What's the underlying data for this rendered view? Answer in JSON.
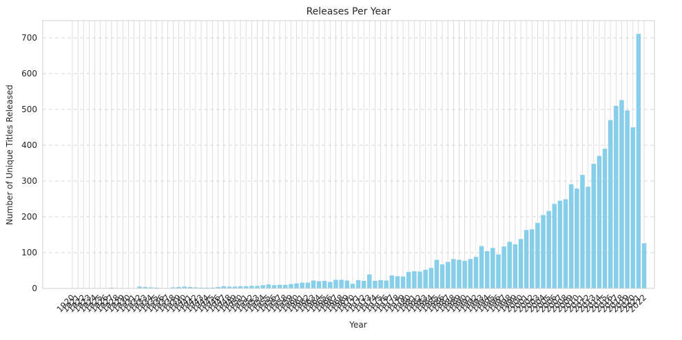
{
  "chart_data": {
    "type": "bar",
    "title": "Releases Per Year",
    "x_label": "Year",
    "y_label": "Number of Unique Titles Released",
    "categories": [
      "1920",
      "1921",
      "1922",
      "1923",
      "1924",
      "1925",
      "1926",
      "1927",
      "1928",
      "1929",
      "1930",
      "1931",
      "1932",
      "1933",
      "1934",
      "1935",
      "1936",
      "1937",
      "1938",
      "1939",
      "1940",
      "1941",
      "1942",
      "1943",
      "1944",
      "1945",
      "1946",
      "1947",
      "1948",
      "1949",
      "1950",
      "1951",
      "1952",
      "1953",
      "1954",
      "1955",
      "1956",
      "1957",
      "1958",
      "1959",
      "1960",
      "1961",
      "1962",
      "1963",
      "1964",
      "1965",
      "1966",
      "1967",
      "1968",
      "1969",
      "1970",
      "1971",
      "1972",
      "1973",
      "1974",
      "1975",
      "1976",
      "1977",
      "1978",
      "1979",
      "1980",
      "1981",
      "1982",
      "1983",
      "1984",
      "1985",
      "1986",
      "1987",
      "1988",
      "1989",
      "1990",
      "1991",
      "1992",
      "1993",
      "1994",
      "1995",
      "1996",
      "1997",
      "1998",
      "1999",
      "2000",
      "2001",
      "2002",
      "2003",
      "2004",
      "2005",
      "2006",
      "2007",
      "2008",
      "2009",
      "2010",
      "2011",
      "2012",
      "2013",
      "2014",
      "2015",
      "2016",
      "2017",
      "2018",
      "2019",
      "2020",
      "2021",
      "2022"
    ],
    "values": [
      1,
      1,
      1,
      1,
      1,
      1,
      1,
      2,
      1,
      1,
      1,
      1,
      5,
      4,
      3,
      2,
      1,
      1,
      3,
      4,
      5,
      4,
      3,
      2,
      2,
      2,
      4,
      6,
      5,
      5,
      6,
      6,
      7,
      7,
      9,
      11,
      9,
      10,
      10,
      12,
      14,
      16,
      16,
      22,
      20,
      21,
      18,
      24,
      24,
      22,
      13,
      23,
      21,
      39,
      21,
      23,
      22,
      36,
      34,
      33,
      46,
      48,
      47,
      52,
      57,
      80,
      67,
      74,
      82,
      80,
      77,
      82,
      88,
      118,
      104,
      113,
      95,
      117,
      130,
      123,
      138,
      163,
      165,
      183,
      205,
      216,
      236,
      245,
      249,
      291,
      279,
      317,
      284,
      348,
      370,
      390,
      470,
      510,
      526,
      497,
      450,
      711,
      126
    ],
    "color": "#87ceeb",
    "ylim": [
      0,
      748
    ],
    "yticks": [
      0,
      100,
      200,
      300,
      400,
      500,
      600,
      700
    ],
    "grid": true
  }
}
